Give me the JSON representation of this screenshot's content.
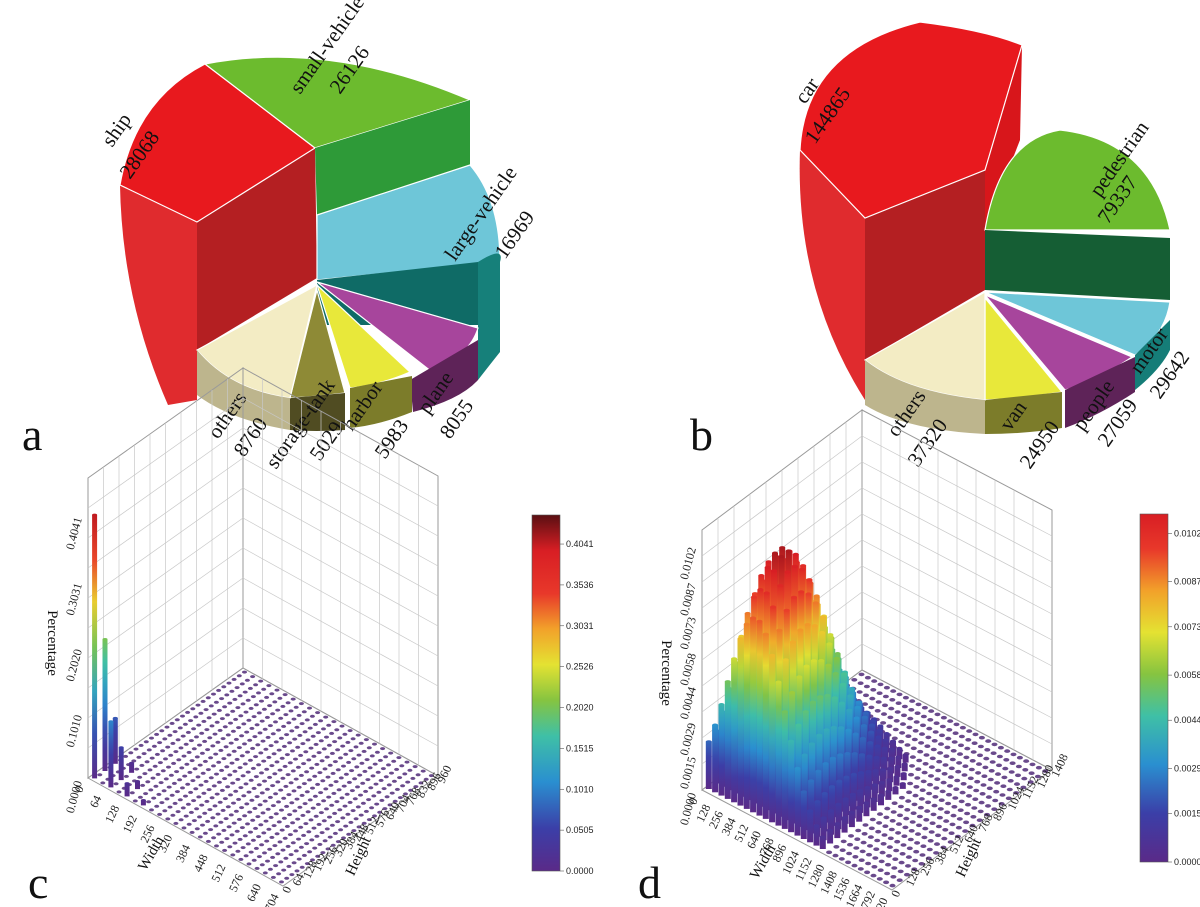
{
  "panels": {
    "a": "a",
    "b": "b",
    "c": "c",
    "d": "d"
  },
  "chart_data": [
    {
      "type": "pie",
      "panel": "a",
      "categories": [
        "ship",
        "small-vehicle",
        "large-vehicle",
        "plane",
        "harbor",
        "storage-tank",
        "others"
      ],
      "values": [
        28068,
        26126,
        16969,
        8055,
        5983,
        5029,
        8760
      ],
      "colors": [
        "#e8191e",
        "#6cbb2e",
        "#6ec6d8",
        "#a7459c",
        "#e8e83a",
        "#8e8a36",
        "#f3ecc4"
      ],
      "exploded": "ship"
    },
    {
      "type": "pie",
      "panel": "b",
      "categories": [
        "car",
        "pedestrian",
        "motor",
        "people",
        "van",
        "others"
      ],
      "values": [
        144865,
        79337,
        29642,
        27059,
        24950,
        37320
      ],
      "colors": [
        "#e8191e",
        "#6cbb2e",
        "#6ec6d8",
        "#a7459c",
        "#e8e83a",
        "#f3ecc4"
      ],
      "exploded": "car"
    },
    {
      "type": "bar3d",
      "panel": "c",
      "xlabel": "Width",
      "ylabel": "Height",
      "zlabel": "Percentage",
      "x_ticks": [
        "0",
        "64",
        "128",
        "192",
        "256",
        "320",
        "384",
        "448",
        "512",
        "576",
        "640",
        "704"
      ],
      "y_ticks": [
        "0",
        "64",
        "128",
        "192",
        "256",
        "320",
        "384",
        "448",
        "512",
        "576",
        "640",
        "704",
        "768",
        "832",
        "896",
        "960"
      ],
      "z_ticks": [
        "0.0000",
        "0.1010",
        "0.2020",
        "0.3031",
        "0.4041"
      ],
      "zlim": [
        0,
        0.46
      ],
      "colorbar_ticks": [
        "0.0000",
        "0.0505",
        "0.1010",
        "0.1515",
        "0.2020",
        "0.2526",
        "0.3031",
        "0.3536",
        "0.4041"
      ],
      "colorbar_max": 0.44,
      "bars": [
        {
          "x": 0,
          "y": 0,
          "value": 0.4041
        },
        {
          "x": 0,
          "y": 64,
          "value": 0.202
        },
        {
          "x": 64,
          "y": 0,
          "value": 0.101
        },
        {
          "x": 0,
          "y": 128,
          "value": 0.07
        },
        {
          "x": 64,
          "y": 64,
          "value": 0.05
        },
        {
          "x": 128,
          "y": 0,
          "value": 0.02
        },
        {
          "x": 64,
          "y": 128,
          "value": 0.015
        },
        {
          "x": 128,
          "y": 64,
          "value": 0.012
        },
        {
          "x": 192,
          "y": 0,
          "value": 0.008
        }
      ]
    },
    {
      "type": "bar3d",
      "panel": "d",
      "xlabel": "Width",
      "ylabel": "Height",
      "zlabel": "Percentage",
      "x_ticks": [
        "0",
        "128",
        "256",
        "384",
        "512",
        "640",
        "768",
        "896",
        "1024",
        "1152",
        "1280",
        "1408",
        "1536",
        "1664",
        "1792",
        "1920"
      ],
      "y_ticks": [
        "0",
        "128",
        "256",
        "384",
        "512",
        "640",
        "768",
        "896",
        "1024",
        "1152",
        "1280",
        "1408"
      ],
      "z_ticks": [
        "0.0000",
        "0.0015",
        "0.0029",
        "0.0044",
        "0.0058",
        "0.0073",
        "0.0087",
        "0.0102"
      ],
      "zlim": [
        0,
        0.0108
      ],
      "colorbar_ticks": [
        "0.0000",
        "0.0015",
        "0.0029",
        "0.0044",
        "0.0058",
        "0.0073",
        "0.0087",
        "0.0102"
      ],
      "colorbar_max": 0.0108,
      "surface_peak": {
        "x": 512,
        "y": 256,
        "value": 0.0102
      }
    }
  ]
}
